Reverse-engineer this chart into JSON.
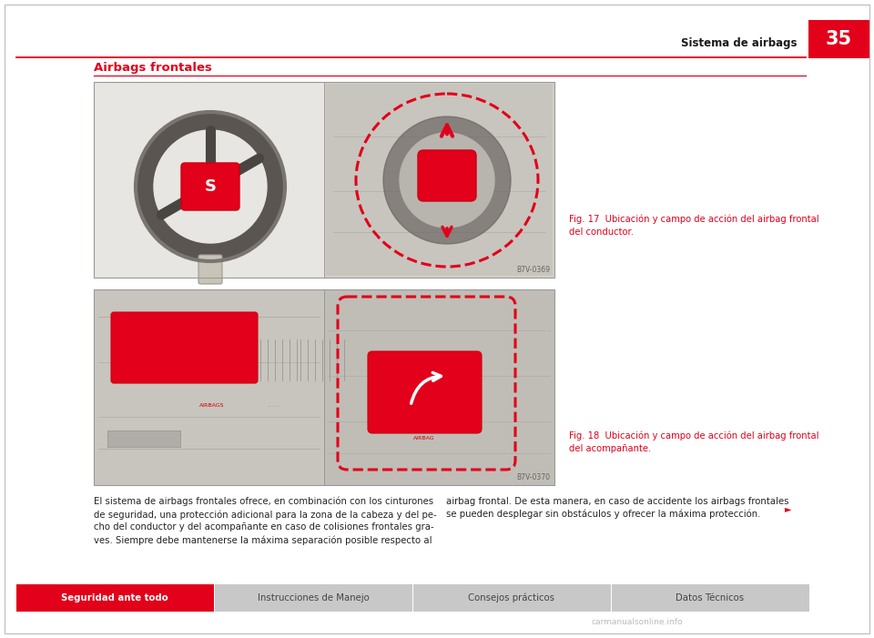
{
  "page_bg": "#ffffff",
  "border_color": "#bbbbbb",
  "red_color": "#e2001a",
  "header_text": "Sistema de airbags",
  "header_number": "35",
  "section_title": "Airbags frontales",
  "fig17_caption": "Fig. 17  Ubicación y campo de acción del airbag frontal\ndel conductor.",
  "fig18_caption": "Fig. 18  Ubicación y campo de acción del airbag frontal\ndel acompañante.",
  "body_text_left": "El sistema de airbags frontales ofrece, en combinación con los cinturones\nde seguridad, una protección adicional para la zona de la cabeza y del pe-\ncho del conductor y del acompañante en caso de colisiones frontales gra-\nves. Siempre debe mantenerse la máxima separación posible respecto al",
  "body_text_right": "airbag frontal. De esta manera, en caso de accidente los airbags frontales\nse pueden desplegar sin obstáculos y ofrecer la máxima protección.",
  "footer_tabs": [
    "Seguridad ante todo",
    "Instrucciones de Manejo",
    "Consejos prácticos",
    "Datos Técnicos"
  ],
  "footer_tab_colors": [
    "#e2001a",
    "#c8c8c8",
    "#c8c8c8",
    "#c8c8c8"
  ],
  "footer_tab_text_colors": [
    "#ffffff",
    "#444444",
    "#444444",
    "#444444"
  ],
  "watermark": "carmanualsonline.info",
  "img1_bg_left": "#e8e6e2",
  "img1_bg_right": "#d4d0c8",
  "img2_bg_left": "#d0cdc8",
  "img2_bg_right": "#c8c4bc",
  "steering_wheel_color": "#6a6560",
  "steering_wheel_inner": "#7a7570",
  "img_border": "#999999",
  "divider_color": "#888888"
}
